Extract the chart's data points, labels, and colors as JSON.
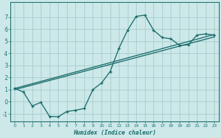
{
  "xlabel": "Humidex (Indice chaleur)",
  "background_color": "#cce8e8",
  "grid_color": "#aacece",
  "line_color": "#1a6b6b",
  "xlim": [
    -0.5,
    23.5
  ],
  "ylim": [
    -1.6,
    8.2
  ],
  "yticks": [
    -1,
    0,
    1,
    2,
    3,
    4,
    5,
    6,
    7
  ],
  "xticks": [
    0,
    1,
    2,
    3,
    4,
    5,
    6,
    7,
    8,
    9,
    10,
    11,
    12,
    13,
    14,
    15,
    16,
    17,
    18,
    19,
    20,
    21,
    22,
    23
  ],
  "line1_x": [
    0,
    1,
    2,
    3,
    4,
    5,
    6,
    7,
    8,
    9,
    10,
    11,
    12,
    13,
    14,
    15,
    16,
    17,
    18,
    19,
    20,
    21,
    22,
    23
  ],
  "line1_y": [
    1.1,
    0.8,
    -0.35,
    -0.05,
    -1.2,
    -1.25,
    -0.8,
    -0.7,
    -0.55,
    1.0,
    1.55,
    2.5,
    4.4,
    5.9,
    7.05,
    7.15,
    5.9,
    5.3,
    5.2,
    4.65,
    4.7,
    5.5,
    5.6,
    5.5
  ],
  "line2_x": [
    0,
    23
  ],
  "line2_y": [
    1.1,
    5.55
  ],
  "line3_x": [
    0,
    23
  ],
  "line3_y": [
    1.0,
    5.35
  ],
  "marker": "+",
  "markersize": 3.5,
  "markeredgewidth": 1.0,
  "linewidth": 1.0
}
